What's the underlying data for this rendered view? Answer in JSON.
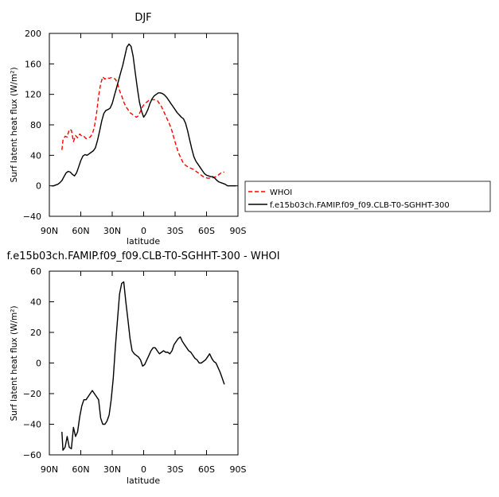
{
  "chart_data": [
    {
      "type": "line",
      "title": "DJF",
      "xlabel": "latitude",
      "ylabel": "Surf latent heat flux (W/m²)",
      "xlim": [
        90,
        -90
      ],
      "ylim": [
        -40,
        200
      ],
      "xticks": [
        90,
        60,
        30,
        0,
        -30,
        -60,
        -90
      ],
      "xticklabels": [
        "90N",
        "60N",
        "30N",
        "0",
        "30S",
        "60S",
        "90S"
      ],
      "yticks": [
        -40,
        0,
        40,
        80,
        120,
        160,
        200
      ],
      "yticklabels": [
        "−40",
        "0",
        "40",
        "80",
        "120",
        "160",
        "200"
      ],
      "legend_position": "right of plot",
      "series": [
        {
          "name": "WHOI",
          "color": "#ff0000",
          "dash": "dashed",
          "x": [
            78,
            77,
            75,
            73,
            71,
            69,
            67,
            65,
            63,
            61,
            59,
            57,
            55,
            53,
            51,
            49,
            47,
            45,
            43,
            41,
            39,
            37,
            35,
            33,
            31,
            29,
            27,
            25,
            23,
            21,
            19,
            17,
            15,
            13,
            11,
            9,
            7,
            5,
            3,
            1,
            -1,
            -3,
            -5,
            -7,
            -9,
            -11,
            -13,
            -15,
            -17,
            -19,
            -21,
            -23,
            -25,
            -27,
            -29,
            -31,
            -33,
            -35,
            -37,
            -39,
            -41,
            -43,
            -45,
            -47,
            -49,
            -51,
            -53,
            -55,
            -57,
            -59,
            -61,
            -63,
            -65,
            -67,
            -69,
            -71,
            -73,
            -75,
            -77
          ],
          "y": [
            47,
            60,
            65,
            64,
            74,
            73,
            58,
            66,
            63,
            68,
            65,
            65,
            62,
            63,
            64,
            68,
            77,
            95,
            118,
            134,
            143,
            140,
            142,
            141,
            142,
            141,
            140,
            135,
            125,
            118,
            110,
            104,
            100,
            96,
            94,
            92,
            90,
            92,
            98,
            104,
            108,
            110,
            112,
            113,
            113,
            113,
            112,
            108,
            104,
            98,
            92,
            86,
            80,
            72,
            62,
            53,
            44,
            38,
            32,
            28,
            26,
            24,
            23,
            22,
            20,
            18,
            16,
            14,
            12,
            11,
            10,
            10,
            10,
            11,
            12,
            14,
            16,
            18,
            18
          ]
        },
        {
          "name": "f.e15b03ch.FAMIP.f09_f09.CLB-T0-SGHHT-300",
          "color": "#000000",
          "dash": "solid",
          "x": [
            88,
            86,
            84,
            82,
            80,
            78,
            76,
            74,
            72,
            70,
            68,
            66,
            64,
            62,
            60,
            58,
            56,
            54,
            52,
            50,
            48,
            46,
            44,
            42,
            40,
            38,
            36,
            34,
            32,
            30,
            28,
            26,
            24,
            22,
            20,
            18,
            16,
            14,
            12,
            10,
            8,
            6,
            4,
            2,
            0,
            -2,
            -4,
            -6,
            -8,
            -10,
            -12,
            -14,
            -16,
            -18,
            -20,
            -22,
            -24,
            -26,
            -28,
            -30,
            -32,
            -34,
            -36,
            -38,
            -40,
            -42,
            -44,
            -46,
            -48,
            -50,
            -52,
            -54,
            -56,
            -58,
            -60,
            -62,
            -64,
            -66,
            -68,
            -70,
            -72,
            -74,
            -76,
            -78,
            -80,
            -82,
            -84,
            -86,
            -88
          ],
          "y": [
            0,
            0,
            1,
            2,
            4,
            7,
            12,
            17,
            19,
            18,
            15,
            13,
            17,
            25,
            33,
            39,
            41,
            40,
            42,
            44,
            46,
            50,
            60,
            72,
            85,
            95,
            99,
            100,
            102,
            108,
            118,
            128,
            138,
            148,
            158,
            170,
            182,
            186,
            183,
            170,
            148,
            128,
            110,
            98,
            90,
            94,
            100,
            108,
            114,
            118,
            120,
            122,
            122,
            121,
            119,
            116,
            112,
            108,
            104,
            100,
            96,
            93,
            90,
            88,
            82,
            72,
            60,
            48,
            38,
            32,
            28,
            24,
            20,
            16,
            14,
            13,
            12,
            12,
            10,
            7,
            5,
            4,
            3,
            2,
            0,
            0,
            0,
            0,
            0
          ]
        }
      ]
    },
    {
      "type": "line",
      "title": "f.e15b03ch.FAMIP.f09_f09.CLB-T0-SGHHT-300 - WHOI",
      "xlabel": "latitude",
      "ylabel": "Surf latent heat flux (W/m²)",
      "xlim": [
        90,
        -90
      ],
      "ylim": [
        -60,
        60
      ],
      "xticks": [
        90,
        60,
        30,
        0,
        -30,
        -60,
        -90
      ],
      "xticklabels": [
        "90N",
        "60N",
        "30N",
        "0",
        "30S",
        "60S",
        "90S"
      ],
      "yticks": [
        -60,
        -40,
        -20,
        0,
        20,
        40,
        60
      ],
      "yticklabels": [
        "−60",
        "−40",
        "−20",
        "0",
        "20",
        "40",
        "60"
      ],
      "series": [
        {
          "color": "#000000",
          "dash": "solid",
          "x": [
            78,
            77,
            75,
            73,
            71,
            69,
            67,
            65,
            63,
            61,
            59,
            57,
            55,
            53,
            51,
            49,
            47,
            45,
            43,
            41,
            39,
            37,
            35,
            33,
            31,
            29,
            27,
            25,
            23,
            21,
            19,
            17,
            15,
            13,
            11,
            9,
            7,
            5,
            3,
            1,
            -1,
            -3,
            -5,
            -7,
            -9,
            -11,
            -13,
            -15,
            -17,
            -19,
            -21,
            -23,
            -25,
            -27,
            -29,
            -31,
            -33,
            -35,
            -37,
            -39,
            -41,
            -43,
            -45,
            -47,
            -49,
            -51,
            -53,
            -55,
            -57,
            -59,
            -61,
            -63,
            -65,
            -67,
            -69,
            -71,
            -73,
            -75,
            -77
          ],
          "y": [
            -45,
            -57,
            -55,
            -48,
            -55,
            -56,
            -42,
            -48,
            -45,
            -35,
            -28,
            -24,
            -24,
            -22,
            -20,
            -18,
            -20,
            -22,
            -24,
            -36,
            -40,
            -40,
            -38,
            -34,
            -24,
            -10,
            10,
            28,
            45,
            52,
            53,
            40,
            28,
            16,
            8,
            6,
            5,
            4,
            2,
            -2,
            -1,
            2,
            5,
            8,
            10,
            10,
            8,
            6,
            7,
            8,
            7,
            7,
            6,
            8,
            12,
            14,
            16,
            17,
            14,
            12,
            10,
            8,
            7,
            5,
            3,
            2,
            0,
            0,
            1,
            2,
            4,
            6,
            3,
            1,
            0,
            -3,
            -6,
            -10,
            -14
          ]
        }
      ]
    }
  ]
}
